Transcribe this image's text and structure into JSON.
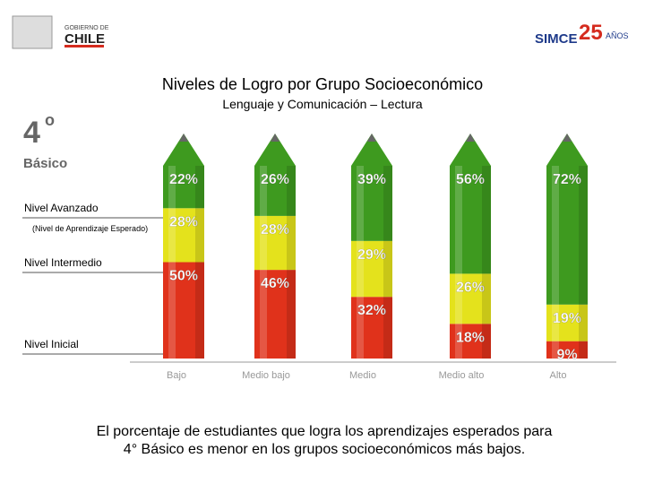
{
  "header": {
    "left_logo": [
      "GOBIERNO DE",
      "CHILE"
    ],
    "right_logo": [
      "SIMCE",
      "25",
      "AÑOS"
    ]
  },
  "grade": {
    "number": "4",
    "ordinal": "o",
    "level": "Básico"
  },
  "chart_data": {
    "type": "stacked_pencil",
    "title": "Niveles de Logro por Grupo Socioeconómico",
    "subtitle": "Lenguaje y Comunicación – Lectura",
    "categories": [
      "Bajo",
      "Medio bajo",
      "Medio",
      "Medio alto",
      "Alto"
    ],
    "legend_note": "(Nivel de Aprendizaje Esperado)",
    "series": [
      {
        "name": "Nivel Avanzado",
        "color": "#3e9a1f",
        "values": [
          22,
          26,
          39,
          56,
          72
        ],
        "value_labels": [
          "22%",
          "26%",
          "39%",
          "56%",
          "72%"
        ]
      },
      {
        "name": "Nivel Intermedio",
        "color": "#e4e21c",
        "values": [
          28,
          28,
          29,
          26,
          19
        ],
        "value_labels": [
          "28%",
          "28%",
          "29%",
          "26%",
          "19%"
        ]
      },
      {
        "name": "Nivel Inicial",
        "color": "#e0321b",
        "values": [
          50,
          46,
          32,
          18,
          9
        ],
        "value_labels": [
          "50%",
          "46%",
          "32%",
          "18%",
          "9%"
        ]
      }
    ]
  },
  "footer": [
    "El porcentaje de estudiantes que logra los aprendizajes esperados para",
    "4° Básico es menor en los grupos socioeconómicos más bajos."
  ]
}
